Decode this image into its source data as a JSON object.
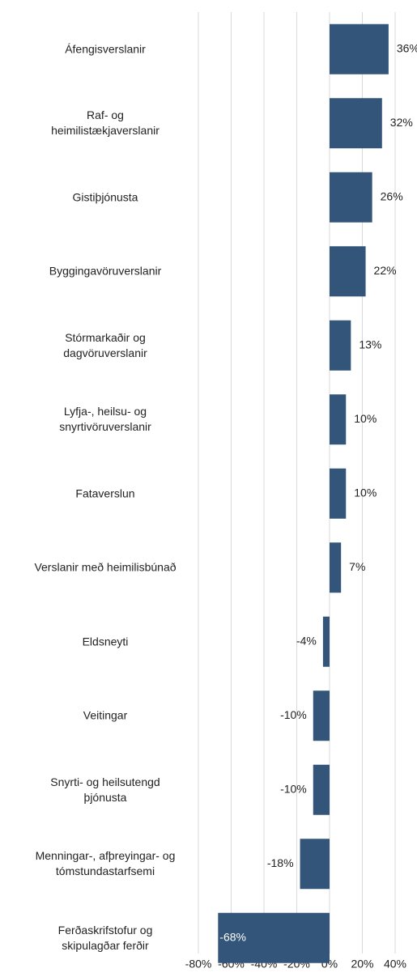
{
  "chart_data": {
    "type": "bar",
    "orientation": "horizontal",
    "categories": [
      "Áfengisverslanir",
      "Raf- og\nheimilistækjaverslanir",
      "Gistiþjónusta",
      "Byggingavöruverslanir",
      "Stórmarkaðir og\ndagvöruverslanir",
      "Lyfja-, heilsu- og\nsnyrtivöruverslanir",
      "Fataverslun",
      "Verslanir með heimilisbúnað",
      "Eldsneyti",
      "Veitingar",
      "Snyrti- og heilsutengd\nþjónusta",
      "Menningar-, afþreyingar- og\ntómstundastarfsemi",
      "Ferðaskrifstofur og\nskipulagðar ferðir"
    ],
    "values": [
      36,
      32,
      26,
      22,
      13,
      10,
      10,
      7,
      -4,
      -10,
      -10,
      -18,
      -68
    ],
    "value_labels": [
      "36%",
      "32%",
      "26%",
      "22%",
      "13%",
      "10%",
      "10%",
      "7%",
      "-4%",
      "-10%",
      "-10%",
      "-18%",
      "-68%"
    ],
    "color": "#34557a",
    "xlim": [
      -80,
      40
    ],
    "xticks": [
      {
        "value": -80,
        "label": "-80%"
      },
      {
        "value": -60,
        "label": "-60%"
      },
      {
        "value": -40,
        "label": "-40%"
      },
      {
        "value": -20,
        "label": "-20%"
      },
      {
        "value": 0,
        "label": "0%"
      },
      {
        "value": 20,
        "label": "20%"
      },
      {
        "value": 40,
        "label": "40%"
      }
    ],
    "grid": true
  }
}
